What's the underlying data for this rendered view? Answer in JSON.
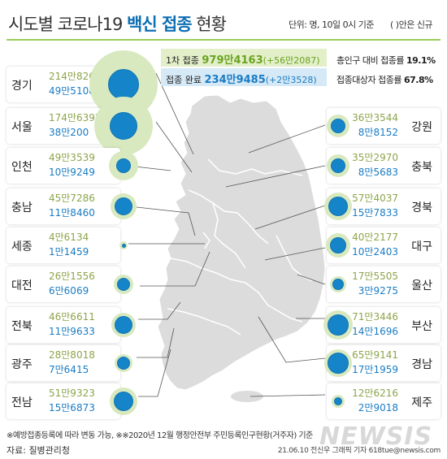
{
  "header": {
    "title_a": "시도별 코로나19 ",
    "title_b": "백신 접종",
    "title_c": " 현황",
    "unit": "단위: 명, 10일 0시 기준",
    "note": "( )안은 신규"
  },
  "summary": {
    "first_label": "1차 접종",
    "first_value": "979만4163",
    "first_change": "(+56만2087)",
    "full_label": "접종 완료",
    "full_value": "234만9485",
    "full_change": "(+2만3528)",
    "rate1_label": "총인구 대비 접종률",
    "rate1_value": "19.1%",
    "rate2_label": "접종대상자 접종률",
    "rate2_value": "67.8%"
  },
  "colors": {
    "first_dose": "#8ba54a",
    "full_dose": "#1a7cc4",
    "bubble_outer": "#d8e9bf",
    "bubble_inner": "#1684c8",
    "map_fill": "#dcdcdc",
    "divider": "#9acd5b"
  },
  "regions_left": [
    {
      "name": "경기",
      "first": "214만8268",
      "full": "49만5108"
    },
    {
      "name": "서울",
      "first": "174만6392",
      "full": "38만200"
    },
    {
      "name": "인천",
      "first": "49만3539",
      "full": "10만9249"
    },
    {
      "name": "충남",
      "first": "45만7286",
      "full": "11만8460"
    },
    {
      "name": "세종",
      "first": "4만6134",
      "full": "1만1459"
    },
    {
      "name": "대전",
      "first": "26만1556",
      "full": "6만6069"
    },
    {
      "name": "전북",
      "first": "46만6611",
      "full": "11만9633"
    },
    {
      "name": "광주",
      "first": "28만8018",
      "full": "7만6415"
    },
    {
      "name": "전남",
      "first": "51만9323",
      "full": "15만6873"
    }
  ],
  "regions_right": [
    {
      "name": "강원",
      "first": "36만3544",
      "full": "8만8152"
    },
    {
      "name": "충북",
      "first": "35만2970",
      "full": "8만5683"
    },
    {
      "name": "경북",
      "first": "57만4037",
      "full": "15만7833"
    },
    {
      "name": "대구",
      "first": "40만2177",
      "full": "10만2403"
    },
    {
      "name": "울산",
      "first": "17만5505",
      "full": "3만9275"
    },
    {
      "name": "부산",
      "first": "71만3446",
      "full": "14만1696"
    },
    {
      "name": "경남",
      "first": "65만9141",
      "full": "17만1959"
    },
    {
      "name": "제주",
      "first": "12만6216",
      "full": "2만9018"
    }
  ],
  "footer": {
    "footnote": "※예방접종등록에 따라 변동 가능, ※※2020년 12월 행정안전부 주민등록인구현황(거주자) 기준",
    "source": "자료: 질병관리청",
    "credit": "21.06.10 전신우 그래픽 기자 618tue@newsis.com",
    "watermark": "NEWSIS"
  }
}
